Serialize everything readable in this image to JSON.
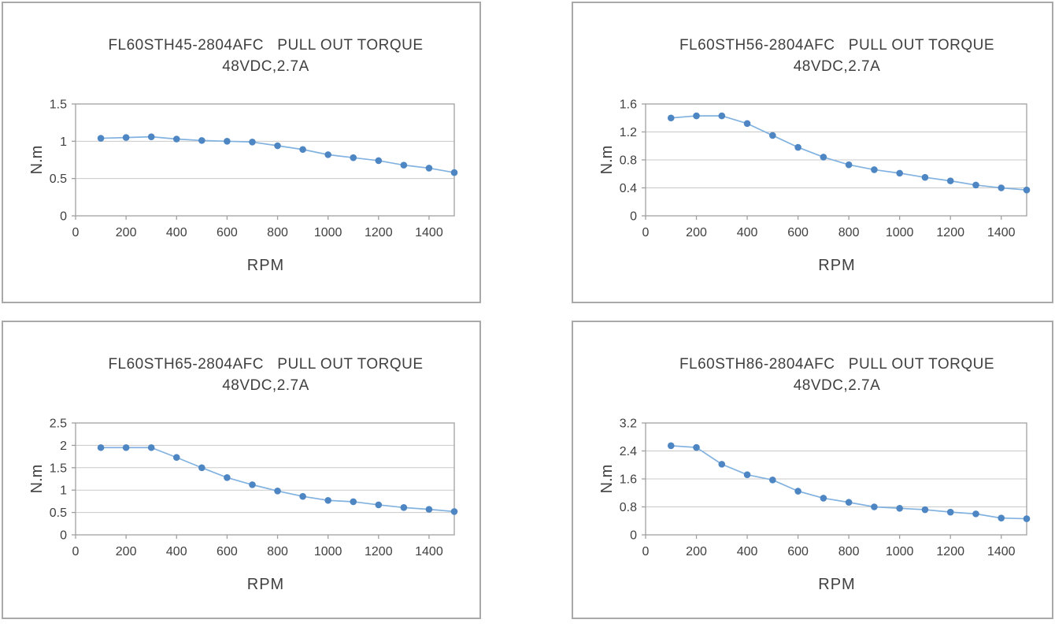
{
  "style": {
    "panel_border_color": "#a9a9a9",
    "grid_color": "#c9c9c9",
    "axis_color": "#a0a0a0",
    "text_color": "#404040",
    "line_color": "#82b2e0",
    "marker_color": "#4d86c3"
  },
  "chart_data": [
    {
      "type": "line",
      "title": "FL60STH45-2804AFC   PULL OUT TORQUE",
      "subtitle": "48VDC,2.7A",
      "xlabel": "RPM",
      "ylabel": "N.m",
      "xlim": [
        0,
        1500
      ],
      "ylim": [
        0,
        1.5
      ],
      "x_ticks": [
        0,
        200,
        400,
        600,
        800,
        1000,
        1200,
        1400
      ],
      "y_ticks": [
        0,
        0.5,
        1,
        1.5
      ],
      "grid": true,
      "legend": false,
      "x": [
        100,
        200,
        300,
        400,
        500,
        600,
        700,
        800,
        900,
        1000,
        1100,
        1200,
        1300,
        1400,
        1500
      ],
      "values": [
        1.04,
        1.05,
        1.06,
        1.03,
        1.01,
        1.0,
        0.99,
        0.94,
        0.89,
        0.82,
        0.78,
        0.74,
        0.68,
        0.64,
        0.58
      ]
    },
    {
      "type": "line",
      "title": "FL60STH56-2804AFC   PULL OUT TORQUE",
      "subtitle": "48VDC,2.7A",
      "xlabel": "RPM",
      "ylabel": "N.m",
      "xlim": [
        0,
        1500
      ],
      "ylim": [
        0,
        1.6
      ],
      "x_ticks": [
        0,
        200,
        400,
        600,
        800,
        1000,
        1200,
        1400
      ],
      "y_ticks": [
        0,
        0.4,
        0.8,
        1.2,
        1.6
      ],
      "grid": true,
      "legend": false,
      "x": [
        100,
        200,
        300,
        400,
        500,
        600,
        700,
        800,
        900,
        1000,
        1100,
        1200,
        1300,
        1400,
        1500
      ],
      "values": [
        1.4,
        1.43,
        1.43,
        1.32,
        1.15,
        0.98,
        0.84,
        0.73,
        0.66,
        0.61,
        0.55,
        0.5,
        0.44,
        0.4,
        0.37
      ]
    },
    {
      "type": "line",
      "title": "FL60STH65-2804AFC   PULL OUT TORQUE",
      "subtitle": "48VDC,2.7A",
      "xlabel": "RPM",
      "ylabel": "N.m",
      "xlim": [
        0,
        1500
      ],
      "ylim": [
        0,
        2.5
      ],
      "x_ticks": [
        0,
        200,
        400,
        600,
        800,
        1000,
        1200,
        1400
      ],
      "y_ticks": [
        0,
        0.5,
        1,
        1.5,
        2,
        2.5
      ],
      "grid": true,
      "legend": false,
      "x": [
        100,
        200,
        300,
        400,
        500,
        600,
        700,
        800,
        900,
        1000,
        1100,
        1200,
        1300,
        1400,
        1500
      ],
      "values": [
        1.95,
        1.95,
        1.95,
        1.73,
        1.5,
        1.28,
        1.12,
        0.98,
        0.86,
        0.77,
        0.74,
        0.67,
        0.61,
        0.57,
        0.52
      ]
    },
    {
      "type": "line",
      "title": "FL60STH86-2804AFC   PULL OUT TORQUE",
      "subtitle": "48VDC,2.7A",
      "xlabel": "RPM",
      "ylabel": "N.m",
      "xlim": [
        0,
        1500
      ],
      "ylim": [
        0,
        3.2
      ],
      "x_ticks": [
        0,
        200,
        400,
        600,
        800,
        1000,
        1200,
        1400
      ],
      "y_ticks": [
        0,
        0.8,
        1.6,
        2.4,
        3.2
      ],
      "grid": true,
      "legend": false,
      "x": [
        100,
        200,
        300,
        400,
        500,
        600,
        700,
        800,
        900,
        1000,
        1100,
        1200,
        1300,
        1400,
        1500
      ],
      "values": [
        2.55,
        2.5,
        2.02,
        1.72,
        1.57,
        1.25,
        1.05,
        0.93,
        0.8,
        0.76,
        0.72,
        0.65,
        0.6,
        0.48,
        0.46
      ]
    }
  ]
}
